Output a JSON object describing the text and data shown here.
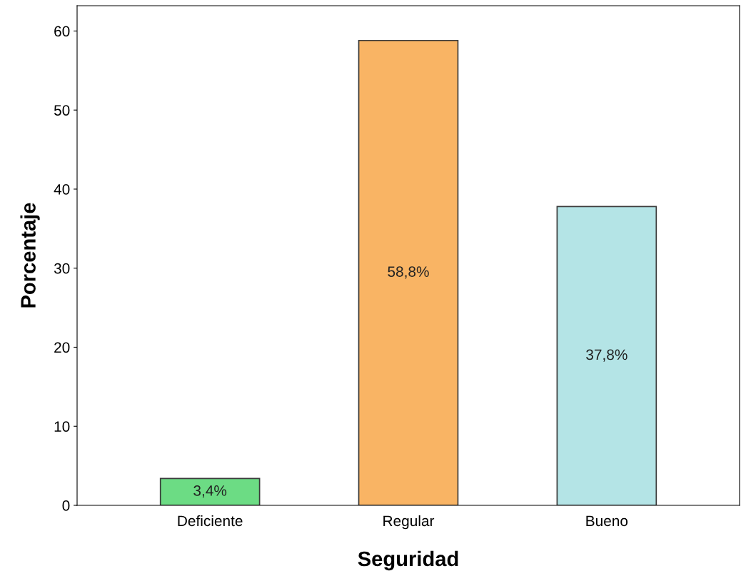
{
  "chart_data": {
    "type": "bar",
    "xlabel": "Seguridad",
    "ylabel": "Porcentaje",
    "categories": [
      "Deficiente",
      "Regular",
      "Bueno"
    ],
    "values": [
      3.4,
      58.8,
      37.8
    ],
    "colors": [
      "#6cdc84",
      "#f9b464",
      "#b4e4e6"
    ],
    "value_labels": [
      "3,4%",
      "58,8%",
      "37,8%"
    ],
    "ylim": [
      0,
      63.2
    ],
    "yticks": [
      0,
      10,
      20,
      30,
      40,
      50,
      60
    ],
    "grid": false,
    "legend": false
  }
}
